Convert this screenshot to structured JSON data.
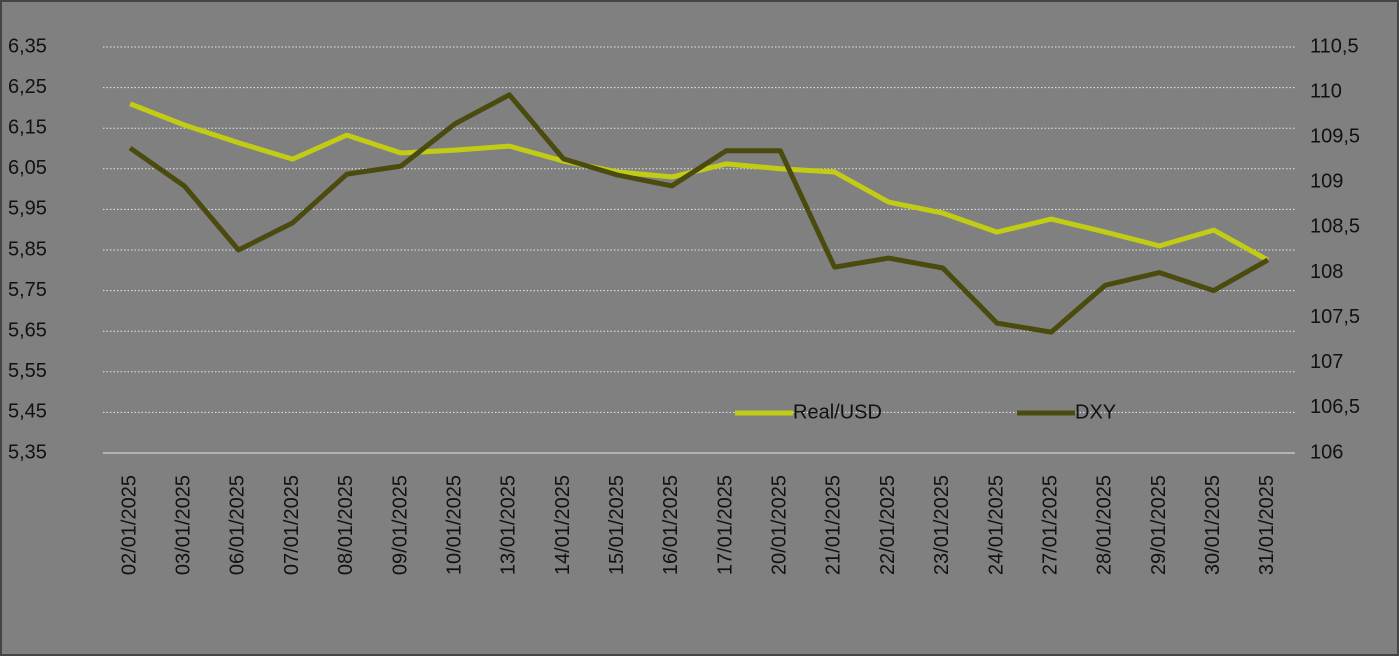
{
  "chart_data": {
    "type": "line",
    "categories": [
      "02/01/2025",
      "03/01/2025",
      "06/01/2025",
      "07/01/2025",
      "08/01/2025",
      "09/01/2025",
      "10/01/2025",
      "13/01/2025",
      "14/01/2025",
      "15/01/2025",
      "16/01/2025",
      "17/01/2025",
      "20/01/2025",
      "21/01/2025",
      "22/01/2025",
      "23/01/2025",
      "24/01/2025",
      "27/01/2025",
      "28/01/2025",
      "29/01/2025",
      "30/01/2025",
      "31/01/2025"
    ],
    "series": [
      {
        "name": "Real/USD",
        "color": "#c3cc14",
        "values": [
          6.21,
          6.158,
          6.114,
          6.074,
          6.133,
          6.089,
          6.096,
          6.106,
          6.069,
          6.042,
          6.03,
          6.062,
          6.05,
          6.042,
          5.968,
          5.941,
          5.894,
          5.926,
          5.894,
          5.86,
          5.899,
          5.825
        ]
      },
      {
        "name": "DXY",
        "color": "#4b4b0f",
        "axis": "y2",
        "values": [
          109.38,
          108.96,
          108.25,
          108.55,
          109.09,
          109.18,
          109.65,
          109.97,
          109.26,
          109.08,
          108.96,
          109.35,
          109.35,
          108.06,
          108.16,
          108.05,
          107.44,
          107.34,
          107.86,
          108.0,
          107.8,
          108.14
        ]
      }
    ],
    "ylim": [
      5.35,
      6.35
    ],
    "yticks": [
      {
        "value": 5.35,
        "label": "5,35"
      },
      {
        "value": 5.45,
        "label": "5,45"
      },
      {
        "value": 5.55,
        "label": "5,55"
      },
      {
        "value": 5.65,
        "label": "5,65"
      },
      {
        "value": 5.75,
        "label": "5,75"
      },
      {
        "value": 5.85,
        "label": "5,85"
      },
      {
        "value": 5.95,
        "label": "5,95"
      },
      {
        "value": 6.05,
        "label": "6,05"
      },
      {
        "value": 6.15,
        "label": "6,15"
      },
      {
        "value": 6.25,
        "label": "6,25"
      },
      {
        "value": 6.35,
        "label": "6,35"
      }
    ],
    "y2lim": [
      106,
      110.5
    ],
    "y2ticks": [
      106,
      {
        "value": 106.5,
        "label": "106,5"
      },
      107,
      {
        "value": 107.5,
        "label": "107,5"
      },
      108,
      {
        "value": 108.5,
        "label": "108,5"
      },
      109,
      {
        "value": 109.5,
        "label": "109,5"
      },
      110,
      {
        "value": 110.5,
        "label": "110,5"
      }
    ],
    "grid": true,
    "legend": "bottom"
  }
}
